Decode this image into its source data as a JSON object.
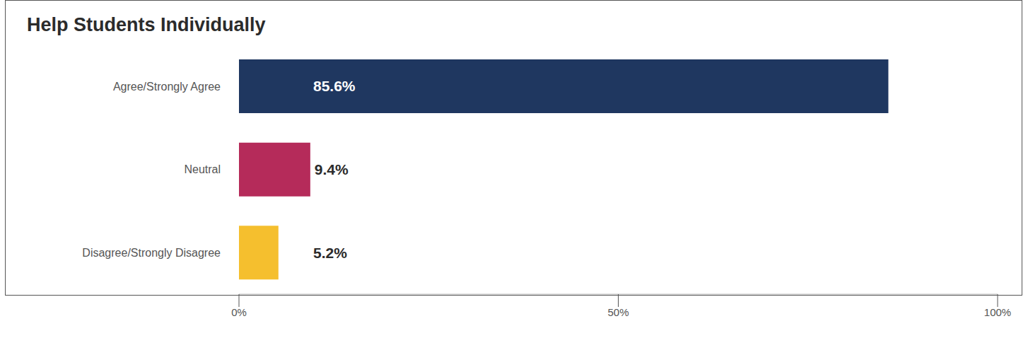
{
  "chart_data": {
    "type": "bar",
    "title": "Help Students Individually",
    "orientation": "horizontal",
    "categories": [
      "Agree/Strongly Agree",
      "Neutral",
      "Disagree/Strongly Disagree"
    ],
    "values": [
      85.6,
      9.4,
      5.2
    ],
    "value_labels": [
      "85.6%",
      "9.4%",
      "5.2%"
    ],
    "colors": [
      "#1f3760",
      "#b52b5a",
      "#f5bf2e"
    ],
    "xlim": [
      0,
      100
    ],
    "xticks": [
      {
        "value": 0,
        "label": "0%"
      },
      {
        "value": 50,
        "label": "50%"
      },
      {
        "value": 100,
        "label": "100%"
      }
    ],
    "data_labels": true,
    "grid": false
  }
}
